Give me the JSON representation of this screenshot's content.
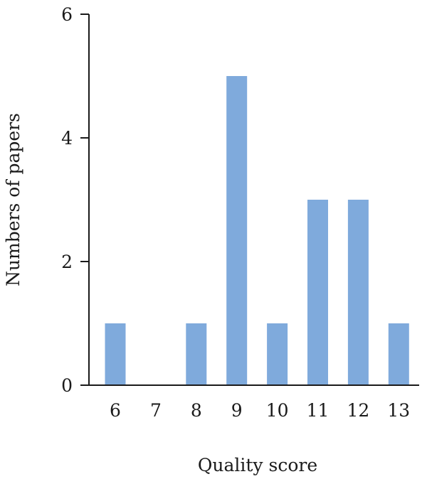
{
  "chart_data": {
    "type": "bar",
    "categories": [
      "6",
      "7",
      "8",
      "9",
      "10",
      "11",
      "12",
      "13"
    ],
    "values": [
      1,
      0,
      1,
      5,
      1,
      3,
      3,
      1
    ],
    "title": "",
    "xlabel": "Quality score",
    "ylabel": "Numbers of papers",
    "ylim": [
      0,
      6
    ],
    "yticks": [
      "0",
      "2",
      "4",
      "6"
    ],
    "bar_color": "#7faadc",
    "grid": false,
    "legend": "none"
  }
}
